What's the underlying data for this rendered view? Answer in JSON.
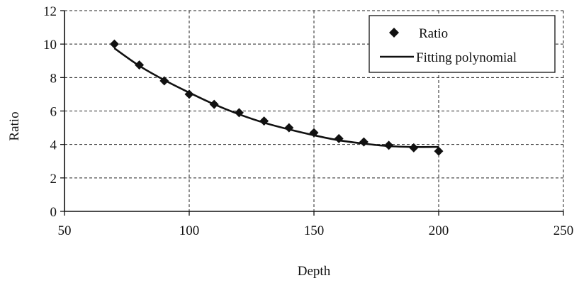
{
  "chart_data": {
    "type": "scatter",
    "title": "",
    "xlabel": "Depth",
    "ylabel": "Ratio",
    "xlim": [
      50,
      250
    ],
    "ylim": [
      0,
      12
    ],
    "x_ticks": [
      50,
      100,
      150,
      200,
      250
    ],
    "y_ticks": [
      0,
      2,
      4,
      6,
      8,
      10,
      12
    ],
    "x_tick_labels": [
      "50",
      "100",
      "150",
      "200",
      "250"
    ],
    "y_tick_labels": [
      "0",
      "2",
      "4",
      "6",
      "8",
      "10",
      "12"
    ],
    "grid": "dashed",
    "legend_position": "top-right",
    "series": [
      {
        "name": "Ratio",
        "kind": "markers",
        "marker": "diamond",
        "color": "#111111",
        "x": [
          70,
          80,
          90,
          100,
          110,
          120,
          130,
          140,
          150,
          160,
          170,
          180,
          190,
          200
        ],
        "y": [
          10.0,
          8.75,
          7.8,
          7.0,
          6.4,
          5.9,
          5.4,
          5.0,
          4.7,
          4.35,
          4.15,
          3.95,
          3.8,
          3.6
        ]
      },
      {
        "name": "Fitting polynomial",
        "kind": "line",
        "color": "#111111",
        "x": [
          70,
          80,
          90,
          100,
          110,
          120,
          130,
          140,
          150,
          160,
          170,
          180,
          190,
          200
        ],
        "y": [
          9.75,
          8.7,
          7.85,
          7.1,
          6.4,
          5.8,
          5.3,
          4.9,
          4.55,
          4.25,
          4.05,
          3.9,
          3.85,
          3.85
        ]
      }
    ]
  }
}
